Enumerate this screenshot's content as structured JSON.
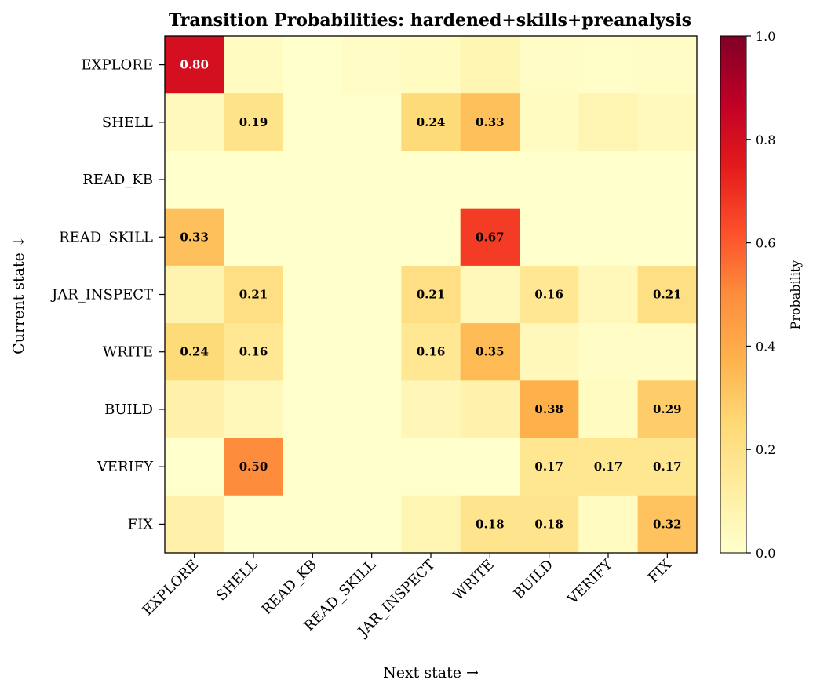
{
  "chart_data": {
    "type": "heatmap",
    "title": "Transition Probabilities: hardened+skills+preanalysis",
    "xlabel": "Next state →",
    "ylabel": "Current state ↓",
    "x_categories": [
      "EXPLORE",
      "SHELL",
      "READ_KB",
      "READ_SKILL",
      "JAR_INSPECT",
      "WRITE",
      "BUILD",
      "VERIFY",
      "FIX"
    ],
    "y_categories": [
      "EXPLORE",
      "SHELL",
      "READ_KB",
      "READ_SKILL",
      "JAR_INSPECT",
      "WRITE",
      "BUILD",
      "VERIFY",
      "FIX"
    ],
    "values": [
      [
        0.8,
        0.03,
        0.0,
        0.02,
        0.03,
        0.07,
        0.02,
        0.01,
        0.02
      ],
      [
        0.04,
        0.19,
        0.0,
        0.0,
        0.24,
        0.33,
        0.03,
        0.07,
        0.04
      ],
      [
        0.0,
        0.0,
        0.0,
        0.0,
        0.0,
        0.0,
        0.0,
        0.0,
        0.0
      ],
      [
        0.33,
        0.0,
        0.0,
        0.0,
        0.0,
        0.67,
        0.0,
        0.0,
        0.0
      ],
      [
        0.08,
        0.21,
        0.0,
        0.0,
        0.21,
        0.05,
        0.16,
        0.05,
        0.21
      ],
      [
        0.24,
        0.16,
        0.0,
        0.0,
        0.16,
        0.35,
        0.05,
        0.02,
        0.02
      ],
      [
        0.1,
        0.05,
        0.0,
        0.0,
        0.06,
        0.09,
        0.38,
        0.03,
        0.29
      ],
      [
        0.0,
        0.5,
        0.0,
        0.0,
        0.0,
        0.0,
        0.17,
        0.17,
        0.17
      ],
      [
        0.1,
        0.0,
        0.0,
        0.0,
        0.07,
        0.18,
        0.18,
        0.03,
        0.32
      ]
    ],
    "annotations": [
      {
        "row": 0,
        "col": 0,
        "text": "0.80"
      },
      {
        "row": 1,
        "col": 1,
        "text": "0.19"
      },
      {
        "row": 1,
        "col": 4,
        "text": "0.24"
      },
      {
        "row": 1,
        "col": 5,
        "text": "0.33"
      },
      {
        "row": 3,
        "col": 0,
        "text": "0.33"
      },
      {
        "row": 3,
        "col": 5,
        "text": "0.67"
      },
      {
        "row": 4,
        "col": 1,
        "text": "0.21"
      },
      {
        "row": 4,
        "col": 4,
        "text": "0.21"
      },
      {
        "row": 4,
        "col": 6,
        "text": "0.16"
      },
      {
        "row": 4,
        "col": 8,
        "text": "0.21"
      },
      {
        "row": 5,
        "col": 0,
        "text": "0.24"
      },
      {
        "row": 5,
        "col": 1,
        "text": "0.16"
      },
      {
        "row": 5,
        "col": 4,
        "text": "0.16"
      },
      {
        "row": 5,
        "col": 5,
        "text": "0.35"
      },
      {
        "row": 6,
        "col": 6,
        "text": "0.38"
      },
      {
        "row": 6,
        "col": 8,
        "text": "0.29"
      },
      {
        "row": 7,
        "col": 1,
        "text": "0.50"
      },
      {
        "row": 7,
        "col": 6,
        "text": "0.17"
      },
      {
        "row": 7,
        "col": 7,
        "text": "0.17"
      },
      {
        "row": 7,
        "col": 8,
        "text": "0.17"
      },
      {
        "row": 8,
        "col": 5,
        "text": "0.18"
      },
      {
        "row": 8,
        "col": 6,
        "text": "0.18"
      },
      {
        "row": 8,
        "col": 8,
        "text": "0.32"
      }
    ],
    "colormap": "YlOrRd",
    "vmin": 0.0,
    "vmax": 1.0,
    "colorbar": {
      "label": "Probability",
      "ticks": [
        "0.0",
        "0.2",
        "0.4",
        "0.6",
        "0.8",
        "1.0"
      ]
    },
    "grid": false
  }
}
